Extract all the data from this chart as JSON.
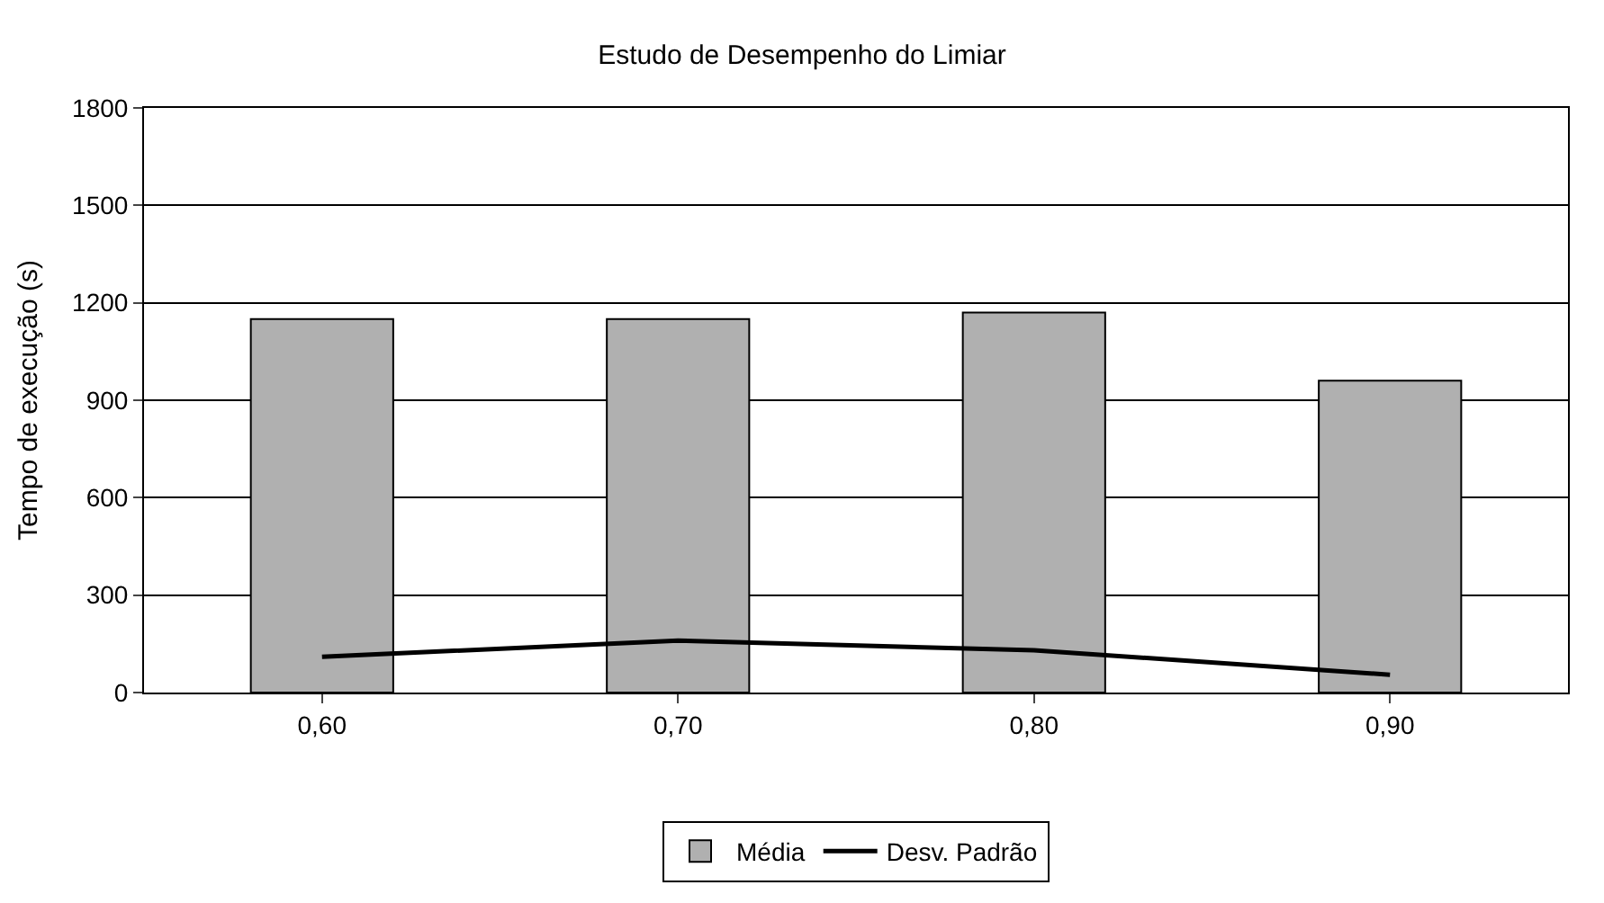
{
  "chart_data": {
    "type": "bar",
    "title": "Estudo de Desempenho do Limiar",
    "ylabel": "Tempo de execução (s)",
    "categories": [
      "0,60",
      "0,70",
      "0,80",
      "0,90"
    ],
    "series": [
      {
        "name": "Média",
        "color": "#b0b0b0",
        "values": [
          1150,
          1150,
          1170,
          960
        ]
      },
      {
        "name": "Desv. Padrão",
        "type": "line",
        "color": "#000000",
        "values": [
          110,
          160,
          130,
          55
        ]
      }
    ],
    "ylim": [
      0,
      1800
    ],
    "yticks": [
      0,
      300,
      600,
      900,
      1200,
      1500,
      1800
    ],
    "grid": "y",
    "legend": "bottom",
    "marker": "none",
    "line_style": "solid"
  }
}
